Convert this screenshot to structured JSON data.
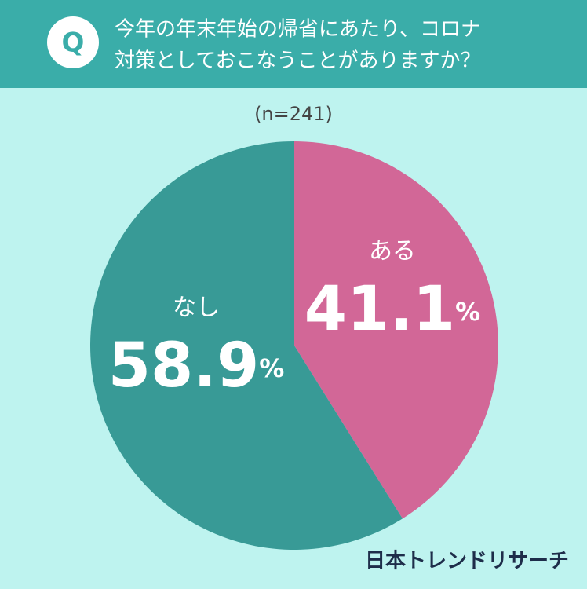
{
  "badge": "Q",
  "chart_data": {
    "type": "pie",
    "title": [
      "今年の年末年始の帰省にあたり、コロナ",
      "対策としておこなうことがありますか？"
    ],
    "subtitle": "(n=241)",
    "categories": [
      "ある",
      "なし"
    ],
    "values": [
      41.1,
      58.9
    ],
    "value_labels": [
      "41.1%",
      "58.9%"
    ],
    "colors": [
      "#d26797",
      "#389a96"
    ]
  },
  "footer": "日本トレンドリサーチ"
}
